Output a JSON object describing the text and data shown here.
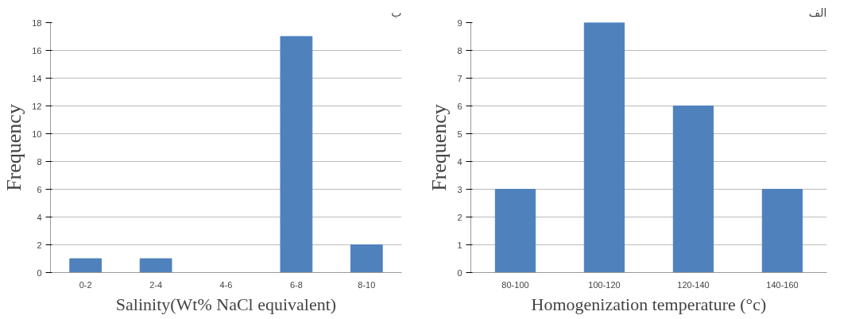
{
  "chart_data": [
    {
      "type": "bar",
      "title": "ب",
      "xlabel": "Salinity(Wt% NaCl equivalent)",
      "ylabel": "Frequency",
      "categories": [
        "0-2",
        "2-4",
        "4-6",
        "6-8",
        "8-10"
      ],
      "values": [
        1,
        1,
        0,
        17,
        2
      ],
      "color": "#4f81bd",
      "ylim": [
        0,
        18
      ],
      "yticks": [
        0,
        2,
        4,
        6,
        8,
        10,
        12,
        14,
        16,
        18
      ],
      "grid": "y"
    },
    {
      "type": "bar",
      "title": "الف",
      "xlabel": "Homogenization temperature (°c)",
      "ylabel": "Frequency",
      "categories": [
        "80-100",
        "100-120",
        "120-140",
        "140-160"
      ],
      "values": [
        3,
        9,
        6,
        3
      ],
      "color": "#4f81bd",
      "ylim": [
        0,
        9
      ],
      "yticks": [
        0,
        1,
        2,
        3,
        4,
        5,
        6,
        7,
        8,
        9
      ],
      "grid": "y"
    }
  ]
}
